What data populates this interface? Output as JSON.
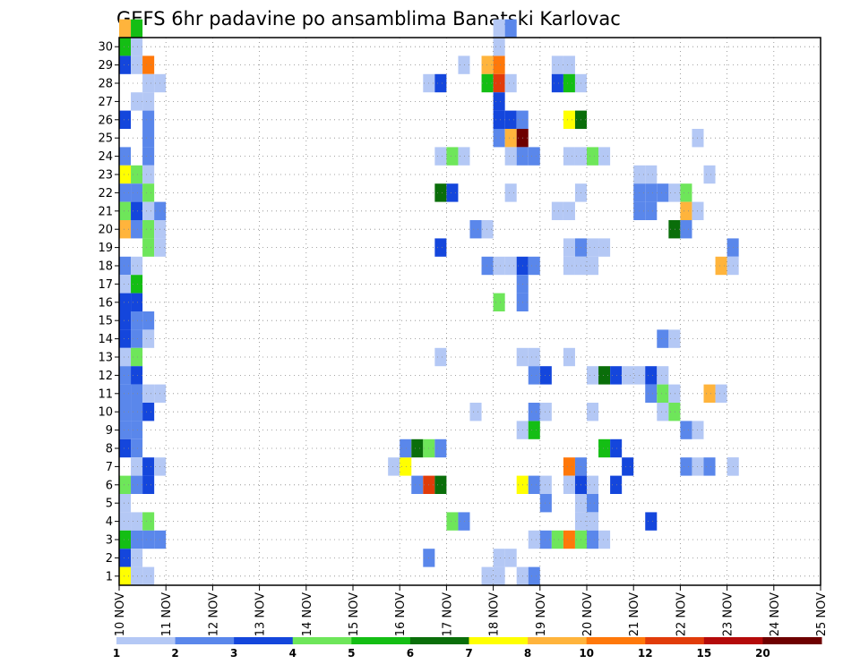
{
  "chart_data": {
    "type": "heatmap",
    "title": "GEFS 6hr padavine po ansamblima Banatski Karlovac",
    "xlabel": "",
    "ylabel": "",
    "x_ticks": [
      "10 NOV",
      "11 NOV",
      "12 NOV",
      "13 NOV",
      "14 NOV",
      "15 NOV",
      "16 NOV",
      "17 NOV",
      "18 NOV",
      "19 NOV",
      "20 NOV",
      "21 NOV",
      "22 NOV",
      "23 NOV",
      "24 NOV",
      "25 NOV"
    ],
    "y_ticks": [
      "1",
      "2",
      "3",
      "4",
      "5",
      "6",
      "7",
      "8",
      "9",
      "10",
      "11",
      "12",
      "13",
      "14",
      "15",
      "16",
      "17",
      "18",
      "19",
      "20",
      "21",
      "22",
      "23",
      "24",
      "25",
      "26",
      "27",
      "28",
      "29",
      "30"
    ],
    "x_range_days": [
      0,
      15
    ],
    "y_range_members": [
      0,
      30
    ],
    "step_hours": 6,
    "grid": true,
    "colorbar": {
      "placement": "bottom",
      "labels": [
        "1",
        "2",
        "3",
        "4",
        "5",
        "6",
        "7",
        "8",
        "10",
        "12",
        "15",
        "20"
      ],
      "colors": [
        "#b4c8f5",
        "#5a87eb",
        "#1446dc",
        "#6ee65a",
        "#14be14",
        "#0a6e0a",
        "#ffff00",
        "#ffb43c",
        "#ff780a",
        "#e13c0a",
        "#b40a0a",
        "#6e0000"
      ]
    },
    "cells": [
      [
        0,
        30,
        7
      ],
      [
        1,
        30,
        4
      ],
      [
        0,
        29,
        4
      ],
      [
        1,
        29,
        0
      ],
      [
        0,
        28,
        2
      ],
      [
        1,
        28,
        0
      ],
      [
        2,
        28,
        8
      ],
      [
        2,
        27,
        0
      ],
      [
        3,
        27,
        0
      ],
      [
        1,
        26,
        0
      ],
      [
        2,
        26,
        0
      ],
      [
        0,
        25,
        2
      ],
      [
        2,
        25,
        1
      ],
      [
        2,
        24,
        1
      ],
      [
        0,
        23,
        1
      ],
      [
        2,
        23,
        1
      ],
      [
        0,
        22,
        6
      ],
      [
        1,
        22,
        3
      ],
      [
        2,
        22,
        0
      ],
      [
        0,
        21,
        1
      ],
      [
        1,
        21,
        1
      ],
      [
        2,
        21,
        3
      ],
      [
        0,
        20,
        3
      ],
      [
        1,
        20,
        2
      ],
      [
        2,
        20,
        0
      ],
      [
        3,
        20,
        1
      ],
      [
        0,
        19,
        7
      ],
      [
        1,
        19,
        1
      ],
      [
        2,
        19,
        3
      ],
      [
        3,
        19,
        0
      ],
      [
        2,
        18,
        3
      ],
      [
        3,
        18,
        0
      ],
      [
        0,
        17,
        1
      ],
      [
        1,
        17,
        0
      ],
      [
        0,
        16,
        0
      ],
      [
        1,
        16,
        4
      ],
      [
        0,
        15,
        2
      ],
      [
        1,
        15,
        2
      ],
      [
        0,
        14,
        2
      ],
      [
        1,
        14,
        1
      ],
      [
        2,
        14,
        1
      ],
      [
        0,
        13,
        2
      ],
      [
        1,
        13,
        1
      ],
      [
        2,
        13,
        0
      ],
      [
        0,
        12,
        0
      ],
      [
        1,
        12,
        3
      ],
      [
        0,
        11,
        1
      ],
      [
        1,
        11,
        2
      ],
      [
        0,
        10,
        1
      ],
      [
        1,
        10,
        1
      ],
      [
        2,
        10,
        0
      ],
      [
        3,
        10,
        0
      ],
      [
        0,
        9,
        1
      ],
      [
        1,
        9,
        1
      ],
      [
        2,
        9,
        2
      ],
      [
        0,
        8,
        1
      ],
      [
        1,
        8,
        1
      ],
      [
        0,
        7,
        2
      ],
      [
        1,
        7,
        1
      ],
      [
        1,
        6,
        0
      ],
      [
        2,
        6,
        2
      ],
      [
        3,
        6,
        0
      ],
      [
        0,
        5,
        3
      ],
      [
        1,
        5,
        1
      ],
      [
        2,
        5,
        2
      ],
      [
        0,
        4,
        0
      ],
      [
        0,
        3,
        0
      ],
      [
        1,
        3,
        0
      ],
      [
        2,
        3,
        3
      ],
      [
        0,
        2,
        4
      ],
      [
        1,
        2,
        1
      ],
      [
        2,
        2,
        1
      ],
      [
        3,
        2,
        1
      ],
      [
        0,
        1,
        2
      ],
      [
        1,
        1,
        0
      ],
      [
        0,
        0,
        6
      ],
      [
        1,
        0,
        0
      ],
      [
        2,
        0,
        0
      ],
      [
        26,
        27,
        0
      ],
      [
        27,
        27,
        2
      ],
      [
        27,
        23,
        0
      ],
      [
        28,
        23,
        3
      ],
      [
        29,
        23,
        0
      ],
      [
        27,
        18,
        2
      ],
      [
        27,
        12,
        0
      ],
      [
        27,
        21,
        5
      ],
      [
        28,
        21,
        2
      ],
      [
        29,
        28,
        0
      ],
      [
        31,
        28,
        7
      ],
      [
        32,
        28,
        8
      ],
      [
        31,
        27,
        4
      ],
      [
        32,
        27,
        9
      ],
      [
        33,
        27,
        0
      ],
      [
        32,
        30,
        0
      ],
      [
        33,
        30,
        1
      ],
      [
        32,
        29,
        0
      ],
      [
        32,
        26,
        2
      ],
      [
        32,
        25,
        2
      ],
      [
        33,
        25,
        2
      ],
      [
        34,
        25,
        1
      ],
      [
        32,
        24,
        1
      ],
      [
        33,
        24,
        7
      ],
      [
        34,
        24,
        11
      ],
      [
        33,
        23,
        0
      ],
      [
        34,
        23,
        1
      ],
      [
        35,
        23,
        1
      ],
      [
        33,
        21,
        0
      ],
      [
        30,
        19,
        1
      ],
      [
        31,
        19,
        0
      ],
      [
        31,
        17,
        1
      ],
      [
        32,
        17,
        0
      ],
      [
        33,
        17,
        0
      ],
      [
        34,
        17,
        2
      ],
      [
        35,
        17,
        1
      ],
      [
        32,
        15,
        3
      ],
      [
        34,
        15,
        1
      ],
      [
        34,
        16,
        1
      ],
      [
        30,
        9,
        0
      ],
      [
        34,
        12,
        0
      ],
      [
        35,
        12,
        0
      ],
      [
        35,
        11,
        1
      ],
      [
        36,
        11,
        2
      ],
      [
        34,
        8,
        0
      ],
      [
        35,
        8,
        4
      ],
      [
        35,
        9,
        1
      ],
      [
        36,
        9,
        0
      ],
      [
        34,
        0,
        0
      ],
      [
        31,
        0,
        0
      ],
      [
        32,
        0,
        0
      ],
      [
        32,
        1,
        0
      ],
      [
        33,
        1,
        0
      ],
      [
        35,
        0,
        1
      ],
      [
        34,
        5,
        6
      ],
      [
        35,
        5,
        1
      ],
      [
        36,
        5,
        0
      ],
      [
        36,
        4,
        1
      ],
      [
        35,
        2,
        0
      ],
      [
        36,
        2,
        1
      ],
      [
        37,
        2,
        3
      ],
      [
        38,
        2,
        8
      ],
      [
        23,
        6,
        0
      ],
      [
        24,
        6,
        6
      ],
      [
        24,
        7,
        1
      ],
      [
        25,
        7,
        5
      ],
      [
        26,
        7,
        3
      ],
      [
        27,
        7,
        1
      ],
      [
        25,
        5,
        1
      ],
      [
        26,
        5,
        9
      ],
      [
        27,
        5,
        5
      ],
      [
        28,
        3,
        3
      ],
      [
        29,
        3,
        1
      ],
      [
        26,
        1,
        1
      ],
      [
        37,
        28,
        0
      ],
      [
        38,
        28,
        0
      ],
      [
        37,
        27,
        2
      ],
      [
        38,
        27,
        4
      ],
      [
        39,
        27,
        0
      ],
      [
        38,
        25,
        6
      ],
      [
        39,
        25,
        5
      ],
      [
        38,
        23,
        0
      ],
      [
        39,
        23,
        0
      ],
      [
        40,
        23,
        3
      ],
      [
        41,
        23,
        0
      ],
      [
        39,
        21,
        0
      ],
      [
        37,
        20,
        0
      ],
      [
        38,
        20,
        0
      ],
      [
        38,
        18,
        0
      ],
      [
        39,
        18,
        1
      ],
      [
        40,
        18,
        0
      ],
      [
        41,
        18,
        0
      ],
      [
        38,
        17,
        0
      ],
      [
        39,
        17,
        0
      ],
      [
        40,
        17,
        0
      ],
      [
        38,
        12,
        0
      ],
      [
        40,
        11,
        0
      ],
      [
        41,
        11,
        5
      ],
      [
        42,
        11,
        2
      ],
      [
        43,
        11,
        0
      ],
      [
        44,
        11,
        0
      ],
      [
        45,
        11,
        2
      ],
      [
        46,
        11,
        0
      ],
      [
        40,
        9,
        0
      ],
      [
        38,
        6,
        8
      ],
      [
        39,
        6,
        1
      ],
      [
        38,
        5,
        0
      ],
      [
        39,
        5,
        2
      ],
      [
        40,
        5,
        0
      ],
      [
        42,
        5,
        2
      ],
      [
        39,
        4,
        0
      ],
      [
        40,
        4,
        1
      ],
      [
        39,
        3,
        0
      ],
      [
        40,
        3,
        0
      ],
      [
        39,
        2,
        3
      ],
      [
        40,
        2,
        1
      ],
      [
        41,
        2,
        0
      ],
      [
        41,
        7,
        4
      ],
      [
        42,
        7,
        2
      ],
      [
        45,
        3,
        2
      ],
      [
        43,
        6,
        2
      ],
      [
        48,
        6,
        1
      ],
      [
        49,
        6,
        0
      ],
      [
        44,
        22,
        0
      ],
      [
        45,
        22,
        0
      ],
      [
        44,
        21,
        1
      ],
      [
        45,
        21,
        1
      ],
      [
        46,
        21,
        1
      ],
      [
        47,
        21,
        0
      ],
      [
        48,
        21,
        3
      ],
      [
        44,
        20,
        1
      ],
      [
        45,
        20,
        1
      ],
      [
        48,
        20,
        7
      ],
      [
        49,
        20,
        0
      ],
      [
        47,
        19,
        5
      ],
      [
        48,
        19,
        1
      ],
      [
        49,
        24,
        0
      ],
      [
        50,
        22,
        0
      ],
      [
        52,
        18,
        1
      ],
      [
        51,
        17,
        7
      ],
      [
        52,
        17,
        0
      ],
      [
        46,
        13,
        1
      ],
      [
        47,
        13,
        0
      ],
      [
        45,
        10,
        1
      ],
      [
        46,
        10,
        3
      ],
      [
        47,
        10,
        0
      ],
      [
        50,
        10,
        7
      ],
      [
        51,
        10,
        0
      ],
      [
        46,
        9,
        0
      ],
      [
        47,
        9,
        3
      ],
      [
        48,
        8,
        1
      ],
      [
        49,
        8,
        0
      ],
      [
        50,
        6,
        1
      ],
      [
        52,
        6,
        0
      ],
      [
        52,
        6,
        0
      ]
    ]
  }
}
